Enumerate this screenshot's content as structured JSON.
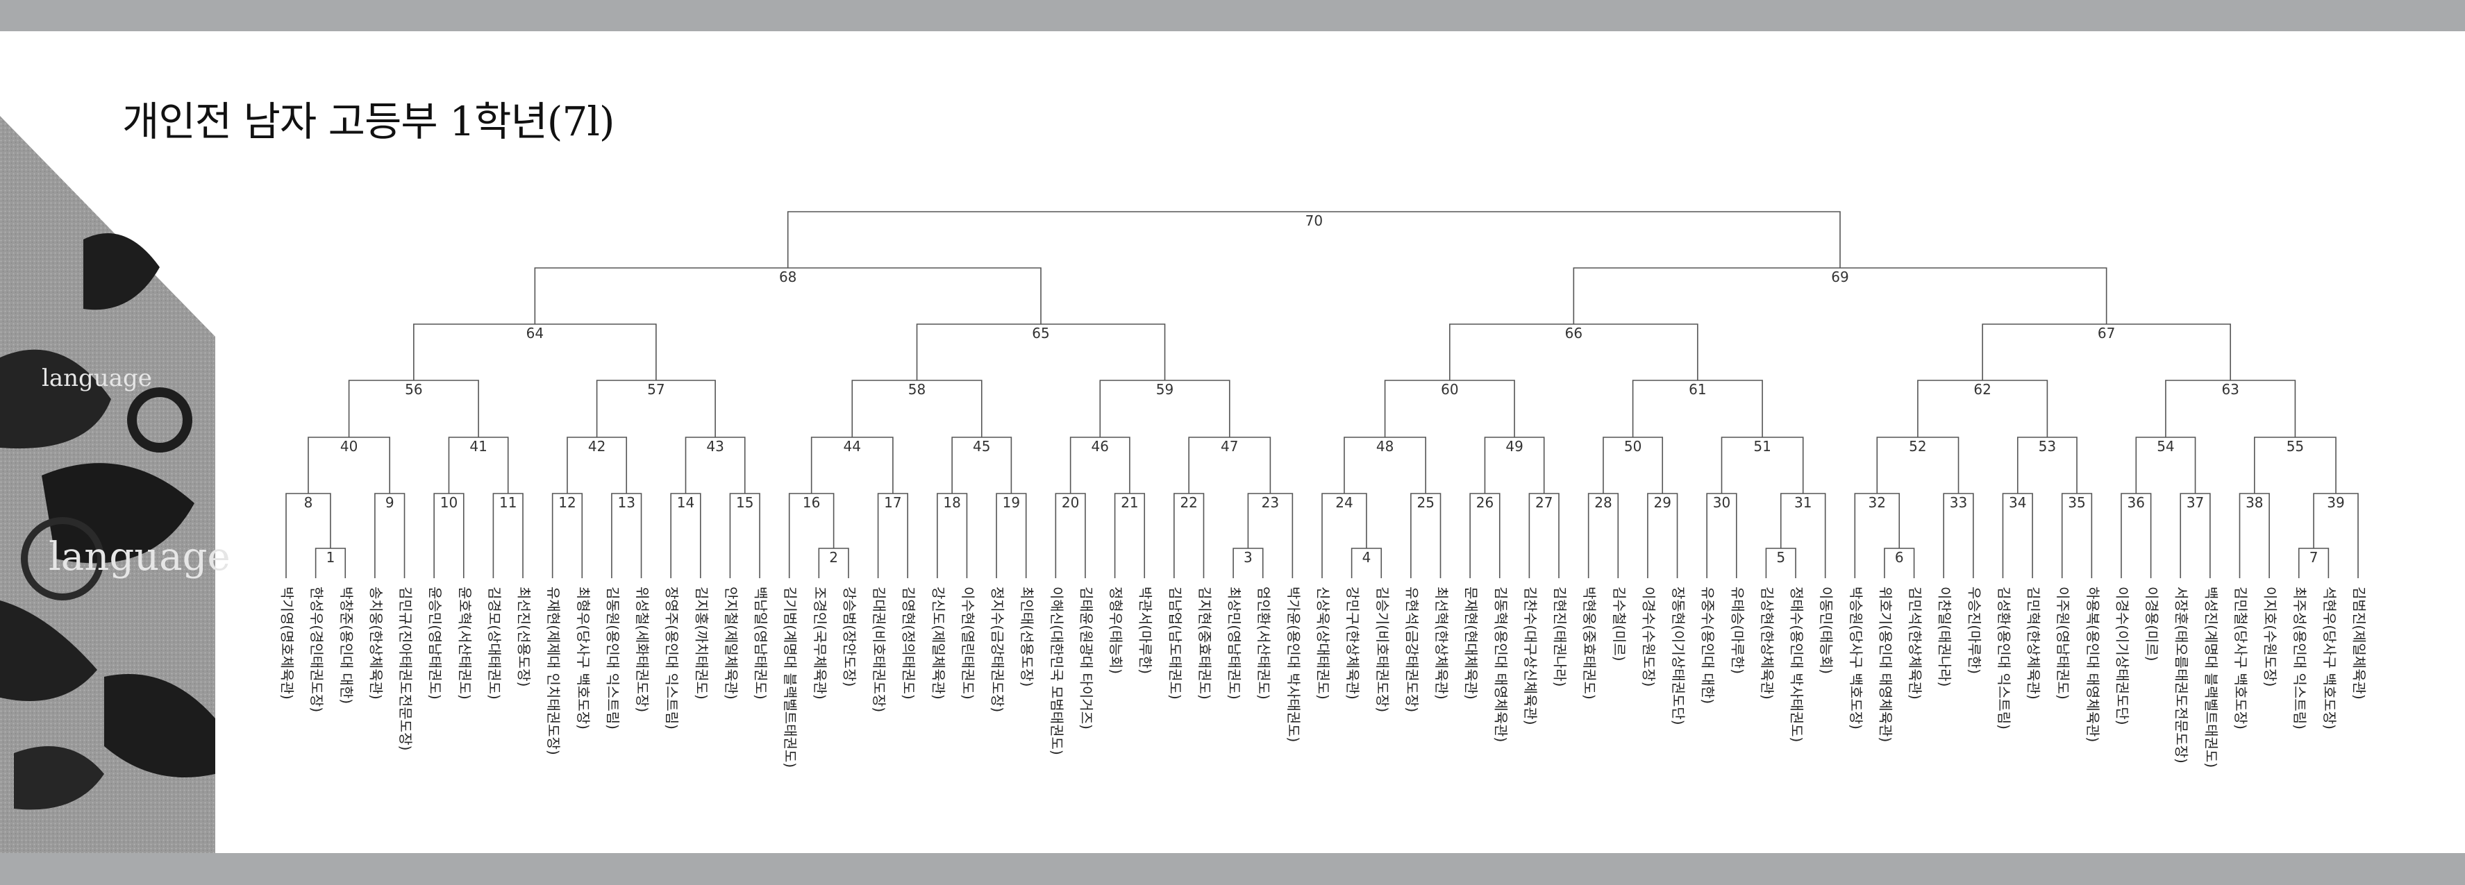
{
  "title": "개인전 남자 고등부 1학년(7l)",
  "decoration": {
    "words": [
      "language",
      "language"
    ]
  },
  "players": [
    "박기영(명호체육관)",
    "한성우(경인태권도장)",
    "박창준(용인대 대한)",
    "송치웅(한상체육관)",
    "김민규(진아태권도전문도장)",
    "윤승민(영남태권도)",
    "윤호혁(서산태권도)",
    "김경모(상대태권도)",
    "최선진(선용도장)",
    "유재현(제제대 인치태권도장)",
    "최형우(당사구 백호도장)",
    "김동원(용인대 익스트림)",
    "위성철(세화태권도장)",
    "장영주(용인대 익스트림)",
    "김지홍(까치태권도)",
    "안지철(제일체육관)",
    "백남일(영남태권도)",
    "김기범(계명대 블랙벨트태권도)",
    "조경인(국무체육관)",
    "강승범(장안도장)",
    "김대권(비호태권도장)",
    "김영현(정의태권도)",
    "강신도(제일체육관)",
    "이수현(열린태권도)",
    "정지수(금강태권도장)",
    "최인태(선용도장)",
    "이해신(대한민국 모범태권도)",
    "김태윤(원광대 타이거즈)",
    "정형우(태능회)",
    "박관서(마루한)",
    "김남업(남도태권도)",
    "김지현(중효태권도)",
    "최상민(영남태권도)",
    "엄인환(서산태권도)",
    "박가윤(용인대 박사태권도)",
    "신상욱(상대태권도)",
    "강민구(한상체육관)",
    "김승기(비호태권도장)",
    "유현석(금강태권도장)",
    "최선혁(한상체육관)",
    "문재현(현대체육관)",
    "김동혁(용인대 태영체육관)",
    "김찬수(대구상신체육관)",
    "김현진(태권나라)",
    "박현웅(중효태권도)",
    "김수철(미르)",
    "이경수(수원도장)",
    "장동현(이기상태권도단)",
    "유중수(용인대 대한)",
    "유태승(마루한)",
    "김상현(한상체육관)",
    "정태수(용인대 박사태권도)",
    "이동민(태능회)",
    "박승원(당사구 백호도장)",
    "위호기(용인대 태영체육관)",
    "김민석(한상체육관)",
    "이찬일(태권나라)",
    "우승진(마루한)",
    "김성환(용인대 익스트림)",
    "김민혁(한상체육관)",
    "이주원(영남태권도)",
    "하용복(용인대 태영체육관)",
    "이경수(이기상태권도단)",
    "이경용(미르)",
    "서장훈(태오름태권도전문도장)",
    "백성진(계명대 블랙벨트태권도)",
    "김민철(당사구 백호도장)",
    "이지호(수원도장)",
    "최주성(용인대 익스트림)",
    "석현우(당사구 백호도장)",
    "김범진(제일체육관)"
  ],
  "matches": [
    {
      "id": "1",
      "a": 1,
      "b": 2
    },
    {
      "id": "8",
      "a": 0,
      "b": "1"
    },
    {
      "id": "9",
      "a": 3,
      "b": 4
    },
    {
      "id": "40",
      "a": "8",
      "b": "9"
    },
    {
      "id": "10",
      "a": 5,
      "b": 6
    },
    {
      "id": "11",
      "a": 7,
      "b": 8
    },
    {
      "id": "41",
      "a": "10",
      "b": "11"
    },
    {
      "id": "56",
      "a": "40",
      "b": "41"
    },
    {
      "id": "12",
      "a": 9,
      "b": 10
    },
    {
      "id": "13",
      "a": 11,
      "b": 12
    },
    {
      "id": "42",
      "a": "12",
      "b": "13"
    },
    {
      "id": "14",
      "a": 13,
      "b": 14
    },
    {
      "id": "15",
      "a": 15,
      "b": 16
    },
    {
      "id": "43",
      "a": "14",
      "b": "15"
    },
    {
      "id": "57",
      "a": "42",
      "b": "43"
    },
    {
      "id": "64",
      "a": "56",
      "b": "57"
    },
    {
      "id": "2",
      "a": 18,
      "b": 19
    },
    {
      "id": "16",
      "a": 17,
      "b": "2"
    },
    {
      "id": "17",
      "a": 20,
      "b": 21
    },
    {
      "id": "44",
      "a": "16",
      "b": "17"
    },
    {
      "id": "18",
      "a": 22,
      "b": 23
    },
    {
      "id": "19",
      "a": 24,
      "b": 25
    },
    {
      "id": "45",
      "a": "18",
      "b": "19"
    },
    {
      "id": "58",
      "a": "44",
      "b": "45"
    },
    {
      "id": "20",
      "a": 26,
      "b": 27
    },
    {
      "id": "21",
      "a": 28,
      "b": 29
    },
    {
      "id": "46",
      "a": "20",
      "b": "21"
    },
    {
      "id": "22",
      "a": 30,
      "b": 31
    },
    {
      "id": "3",
      "a": 32,
      "b": 33
    },
    {
      "id": "23",
      "a": "3",
      "b": 34
    },
    {
      "id": "47",
      "a": "22",
      "b": "23"
    },
    {
      "id": "59",
      "a": "46",
      "b": "47"
    },
    {
      "id": "65",
      "a": "58",
      "b": "59"
    },
    {
      "id": "68",
      "a": "64",
      "b": "65"
    },
    {
      "id": "4",
      "a": 36,
      "b": 37
    },
    {
      "id": "24",
      "a": 35,
      "b": "4"
    },
    {
      "id": "25",
      "a": 38,
      "b": 39
    },
    {
      "id": "48",
      "a": "24",
      "b": "25"
    },
    {
      "id": "26",
      "a": 40,
      "b": 41
    },
    {
      "id": "27",
      "a": 42,
      "b": 43
    },
    {
      "id": "49",
      "a": "26",
      "b": "27"
    },
    {
      "id": "60",
      "a": "48",
      "b": "49"
    },
    {
      "id": "28",
      "a": 44,
      "b": 45
    },
    {
      "id": "29",
      "a": 46,
      "b": 47
    },
    {
      "id": "50",
      "a": "28",
      "b": "29"
    },
    {
      "id": "30",
      "a": 48,
      "b": 49
    },
    {
      "id": "5",
      "a": 50,
      "b": 51
    },
    {
      "id": "31",
      "a": "5",
      "b": 52
    },
    {
      "id": "51",
      "a": "30",
      "b": "31"
    },
    {
      "id": "61",
      "a": "50",
      "b": "51"
    },
    {
      "id": "66",
      "a": "60",
      "b": "61"
    },
    {
      "id": "6",
      "a": 54,
      "b": 55
    },
    {
      "id": "32",
      "a": 53,
      "b": "6"
    },
    {
      "id": "33",
      "a": 56,
      "b": 57
    },
    {
      "id": "52",
      "a": "32",
      "b": "33"
    },
    {
      "id": "34",
      "a": 58,
      "b": 59
    },
    {
      "id": "35",
      "a": 60,
      "b": 61
    },
    {
      "id": "53",
      "a": "34",
      "b": "35"
    },
    {
      "id": "62",
      "a": "52",
      "b": "53"
    },
    {
      "id": "36",
      "a": 62,
      "b": 63
    },
    {
      "id": "37",
      "a": 64,
      "b": 65
    },
    {
      "id": "54",
      "a": "36",
      "b": "37"
    },
    {
      "id": "38",
      "a": 66,
      "b": 67
    },
    {
      "id": "7",
      "a": 68,
      "b": 69
    },
    {
      "id": "39",
      "a": "7",
      "b": 70
    },
    {
      "id": "55",
      "a": "38",
      "b": "39"
    },
    {
      "id": "63",
      "a": "54",
      "b": "55"
    },
    {
      "id": "67",
      "a": "62",
      "b": "63"
    },
    {
      "id": "69",
      "a": "66",
      "b": "67"
    },
    {
      "id": "70",
      "a": "68",
      "b": "69"
    }
  ]
}
